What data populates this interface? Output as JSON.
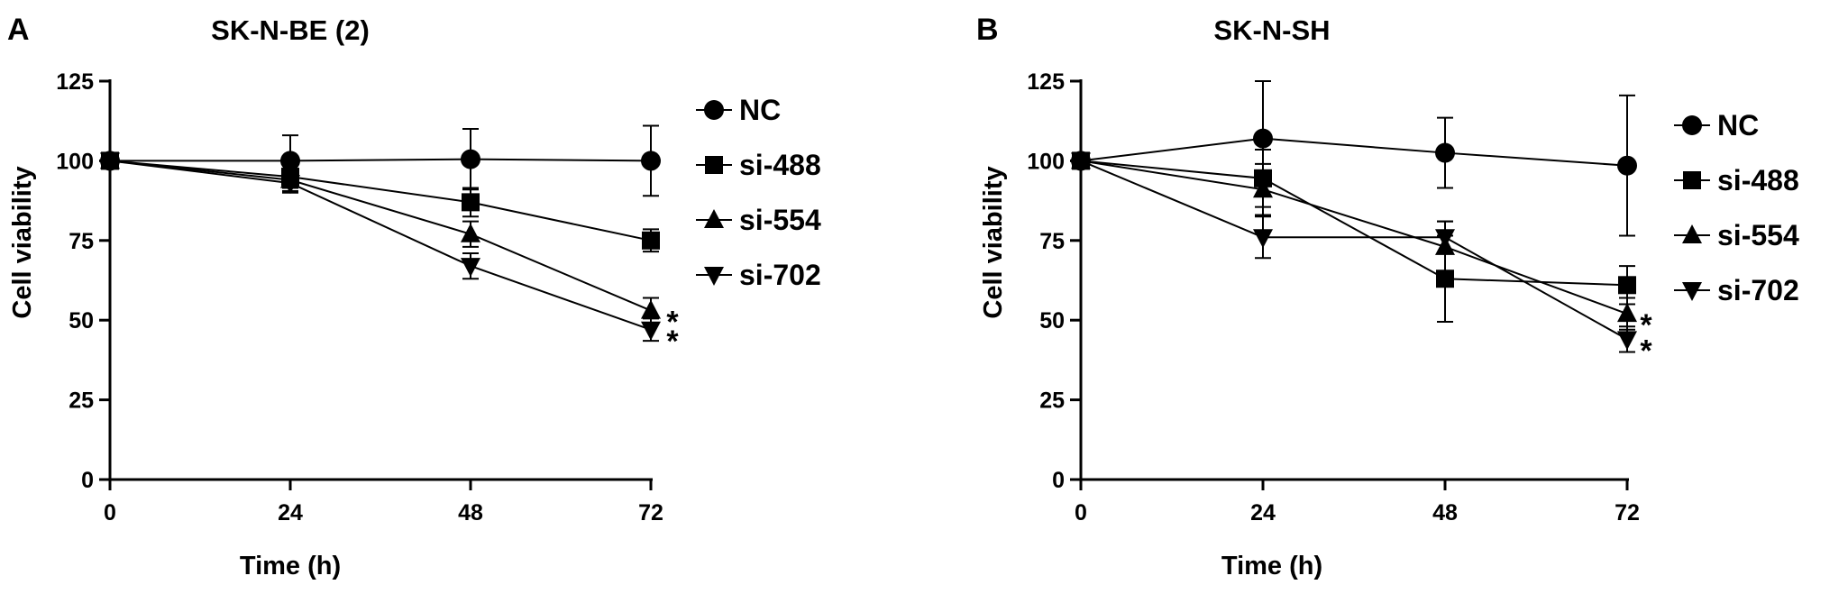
{
  "chart_data": [
    {
      "type": "line",
      "panel_label": "A",
      "title": "SK-N-BE (2)",
      "xlabel": "Time (h)",
      "ylabel": "Cell viability",
      "x": [
        0,
        24,
        48,
        72
      ],
      "xlim": [
        0,
        72
      ],
      "ylim": [
        0,
        125
      ],
      "xticks": [
        "0",
        "24",
        "48",
        "72"
      ],
      "yticks": [
        "0",
        "25",
        "50",
        "75",
        "100",
        "125"
      ],
      "grid": false,
      "legend": "right",
      "series": [
        {
          "name": "NC",
          "marker": "circle",
          "values": [
            100,
            100,
            100.5,
            100
          ],
          "errors": [
            0,
            8,
            9.5,
            11
          ]
        },
        {
          "name": "si-488",
          "marker": "square",
          "values": [
            100,
            95,
            87,
            75
          ],
          "errors": [
            0,
            3.5,
            4.5,
            3.5
          ]
        },
        {
          "name": "si-554",
          "marker": "triangle-up",
          "values": [
            100,
            94,
            77,
            53
          ],
          "errors": [
            0,
            3.5,
            4,
            4
          ]
        },
        {
          "name": "si-702",
          "marker": "triangle-down",
          "values": [
            100,
            93,
            67,
            47
          ],
          "errors": [
            0,
            3,
            4,
            3.5
          ]
        }
      ],
      "annotations": [
        {
          "text": "*",
          "series": "si-554",
          "x": 72
        },
        {
          "text": "*",
          "series": "si-702",
          "x": 72
        }
      ]
    },
    {
      "type": "line",
      "panel_label": "B",
      "title": "SK-N-SH",
      "xlabel": "Time (h)",
      "ylabel": "Cell viability",
      "x": [
        0,
        24,
        48,
        72
      ],
      "xlim": [
        0,
        72
      ],
      "ylim": [
        0,
        125
      ],
      "xticks": [
        "0",
        "24",
        "48",
        "72"
      ],
      "yticks": [
        "0",
        "25",
        "50",
        "75",
        "100",
        "125"
      ],
      "grid": false,
      "legend": "right",
      "series": [
        {
          "name": "NC",
          "marker": "circle",
          "values": [
            100,
            107,
            102.5,
            98.5
          ],
          "errors": [
            0,
            18,
            11,
            22
          ]
        },
        {
          "name": "si-488",
          "marker": "square",
          "values": [
            100,
            94.5,
            63,
            61
          ],
          "errors": [
            0,
            9,
            13.5,
            6
          ]
        },
        {
          "name": "si-554",
          "marker": "triangle-up",
          "values": [
            100,
            91,
            73,
            52
          ],
          "errors": [
            0,
            8,
            8,
            5
          ]
        },
        {
          "name": "si-702",
          "marker": "triangle-down",
          "values": [
            100,
            76,
            76,
            44
          ],
          "errors": [
            0,
            6.5,
            5,
            4
          ]
        }
      ],
      "annotations": [
        {
          "text": "*",
          "series": "si-554",
          "x": 72
        },
        {
          "text": "*",
          "series": "si-702",
          "x": 72
        }
      ]
    }
  ]
}
